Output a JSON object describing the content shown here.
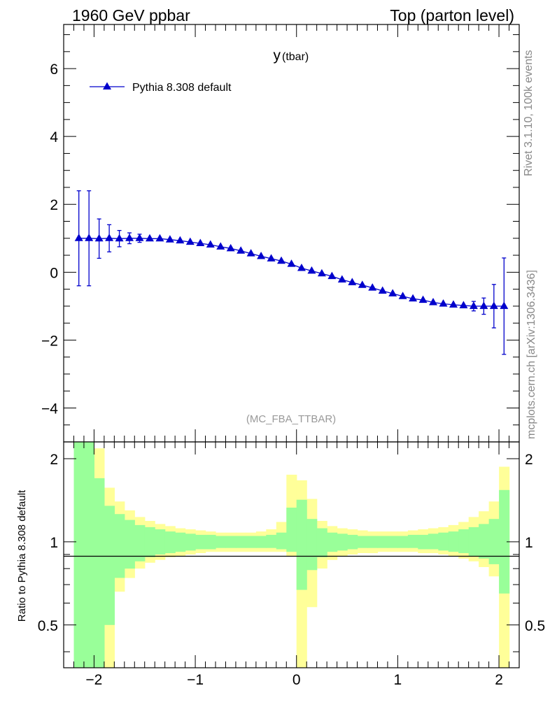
{
  "header": {
    "left": "1960 GeV ppbar",
    "right": "Top (parton level)"
  },
  "side_labels": {
    "rivet": "Rivet 3.1.10,  100k events",
    "mcplots": "mcplots.cern.ch [arXiv:1306.3436]"
  },
  "colors": {
    "series": "#0000cc",
    "band_inner": "#99ff99",
    "band_outer": "#ffff99",
    "watermark": "#999999",
    "side_text": "#888888"
  },
  "chart_data": [
    {
      "type": "line",
      "title_main": "y",
      "title_sub": "(tbar)",
      "watermark": "(MC_FBA_TTBAR)",
      "xlim": [
        -2.3,
        2.2
      ],
      "ylim": [
        -5,
        7.3
      ],
      "yticks_major": [
        -4,
        -2,
        0,
        2,
        4,
        6
      ],
      "ytick_labels": [
        "−4",
        "−2",
        "0",
        "2",
        "4",
        "6"
      ],
      "legend_position": "top-left",
      "series": [
        {
          "name": "Pythia 8.308 default",
          "marker": "triangle",
          "x": [
            -2.15,
            -2.05,
            -1.95,
            -1.85,
            -1.75,
            -1.65,
            -1.55,
            -1.45,
            -1.35,
            -1.25,
            -1.15,
            -1.05,
            -0.95,
            -0.85,
            -0.75,
            -0.65,
            -0.55,
            -0.45,
            -0.35,
            -0.25,
            -0.15,
            -0.05,
            0.05,
            0.15,
            0.25,
            0.35,
            0.45,
            0.55,
            0.65,
            0.75,
            0.85,
            0.95,
            1.05,
            1.15,
            1.25,
            1.35,
            1.45,
            1.55,
            1.65,
            1.75,
            1.85,
            1.95,
            2.05
          ],
          "y": [
            1.0,
            1.0,
            0.99,
            1.0,
            0.99,
            1.0,
            1.0,
            0.99,
            0.99,
            0.96,
            0.93,
            0.89,
            0.85,
            0.81,
            0.75,
            0.7,
            0.63,
            0.55,
            0.47,
            0.4,
            0.33,
            0.24,
            0.12,
            0.04,
            -0.04,
            -0.12,
            -0.22,
            -0.3,
            -0.38,
            -0.46,
            -0.55,
            -0.63,
            -0.71,
            -0.78,
            -0.82,
            -0.89,
            -0.93,
            -0.96,
            -0.98,
            -1.0,
            -1.0,
            -1.0,
            -1.0
          ],
          "yerr": [
            1.4,
            1.4,
            0.58,
            0.4,
            0.24,
            0.16,
            0.12,
            0.09,
            0.07,
            0.05,
            0.04,
            0.04,
            0.03,
            0.03,
            0.03,
            0.03,
            0.02,
            0.02,
            0.02,
            0.02,
            0.02,
            0.02,
            0.02,
            0.02,
            0.02,
            0.02,
            0.02,
            0.02,
            0.02,
            0.03,
            0.03,
            0.03,
            0.03,
            0.04,
            0.04,
            0.04,
            0.05,
            0.07,
            0.09,
            0.14,
            0.24,
            0.64,
            1.42
          ]
        }
      ]
    },
    {
      "type": "area",
      "ylabel": "Ratio to Pythia 8.308 default",
      "xlim": [
        -2.3,
        2.2
      ],
      "ylim": [
        0.35,
        2.3
      ],
      "yticks_major": [
        0.5,
        1,
        2
      ],
      "ytick_labels": [
        "0.5",
        "1",
        "2"
      ],
      "xticks_major": [
        -2,
        -1,
        0,
        1,
        2
      ],
      "xtick_labels": [
        "−2",
        "−1",
        "0",
        "1",
        "2"
      ],
      "bin_edges": [
        -2.2,
        -2.1,
        -2.0,
        -1.9,
        -1.8,
        -1.7,
        -1.6,
        -1.5,
        -1.4,
        -1.3,
        -1.2,
        -1.1,
        -1.0,
        -0.9,
        -0.8,
        -0.7,
        -0.6,
        -0.5,
        -0.4,
        -0.3,
        -0.2,
        -0.1,
        0.0,
        0.1,
        0.2,
        0.3,
        0.4,
        0.5,
        0.6,
        0.7,
        0.8,
        0.9,
        1.0,
        1.1,
        1.2,
        1.3,
        1.4,
        1.5,
        1.6,
        1.7,
        1.8,
        1.9,
        2.0,
        2.1
      ],
      "band_inner_up": [
        2.3,
        2.3,
        1.7,
        1.35,
        1.26,
        1.2,
        1.15,
        1.13,
        1.11,
        1.09,
        1.08,
        1.07,
        1.06,
        1.06,
        1.05,
        1.05,
        1.05,
        1.05,
        1.05,
        1.06,
        1.08,
        1.33,
        1.42,
        1.21,
        1.12,
        1.08,
        1.07,
        1.06,
        1.05,
        1.05,
        1.05,
        1.05,
        1.05,
        1.06,
        1.06,
        1.07,
        1.08,
        1.09,
        1.11,
        1.13,
        1.16,
        1.21,
        1.54,
        2.3
      ],
      "band_inner_dn": [
        0.35,
        0.35,
        0.35,
        0.5,
        0.74,
        0.8,
        0.85,
        0.88,
        0.9,
        0.91,
        0.92,
        0.93,
        0.94,
        0.94,
        0.95,
        0.95,
        0.95,
        0.95,
        0.95,
        0.95,
        0.94,
        0.92,
        0.67,
        0.79,
        0.88,
        0.92,
        0.93,
        0.94,
        0.95,
        0.95,
        0.95,
        0.95,
        0.95,
        0.95,
        0.94,
        0.94,
        0.93,
        0.92,
        0.91,
        0.89,
        0.87,
        0.83,
        0.65,
        0.35
      ],
      "band_outer_up": [
        2.3,
        2.3,
        2.18,
        1.57,
        1.4,
        1.3,
        1.23,
        1.19,
        1.16,
        1.14,
        1.12,
        1.11,
        1.1,
        1.09,
        1.08,
        1.08,
        1.08,
        1.08,
        1.09,
        1.11,
        1.18,
        1.75,
        1.67,
        1.43,
        1.19,
        1.14,
        1.12,
        1.11,
        1.1,
        1.09,
        1.09,
        1.09,
        1.09,
        1.1,
        1.11,
        1.12,
        1.13,
        1.15,
        1.18,
        1.23,
        1.29,
        1.4,
        1.87,
        2.3
      ],
      "band_outer_dn": [
        0.35,
        0.35,
        0.35,
        0.35,
        0.66,
        0.74,
        0.8,
        0.84,
        0.86,
        0.88,
        0.89,
        0.9,
        0.91,
        0.92,
        0.92,
        0.92,
        0.92,
        0.92,
        0.92,
        0.92,
        0.92,
        0.89,
        0.35,
        0.58,
        0.8,
        0.86,
        0.89,
        0.9,
        0.91,
        0.91,
        0.92,
        0.92,
        0.92,
        0.92,
        0.91,
        0.91,
        0.9,
        0.89,
        0.87,
        0.85,
        0.81,
        0.75,
        0.35,
        0.35
      ]
    }
  ]
}
